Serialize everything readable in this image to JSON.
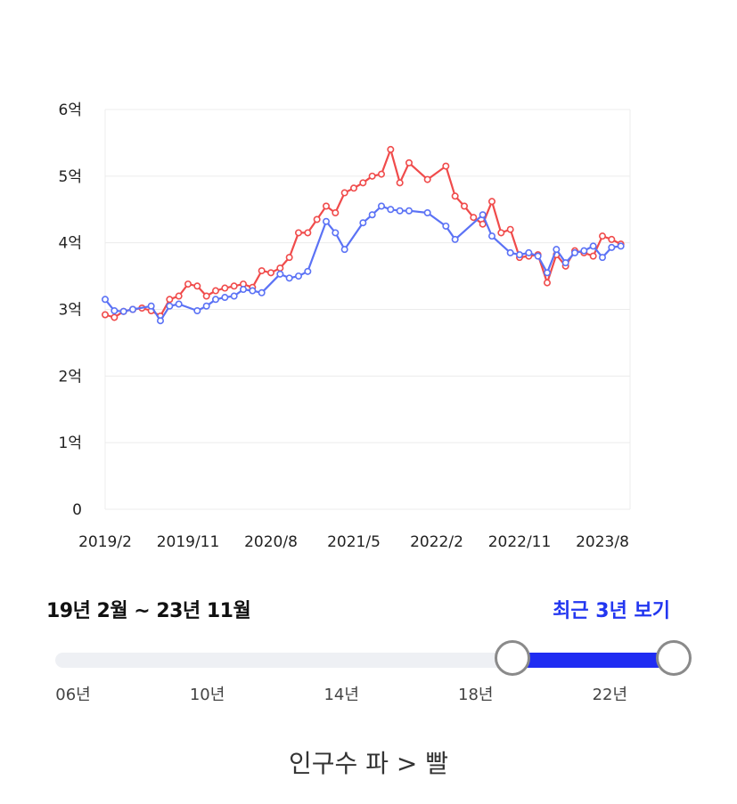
{
  "chart_data": {
    "type": "line",
    "y_ticks": [
      "0",
      "1억",
      "2억",
      "3억",
      "4억",
      "5억",
      "6억"
    ],
    "x_ticks": [
      "2019/2",
      "2019/11",
      "2020/8",
      "2021/5",
      "2022/2",
      "2022/11",
      "2023/8"
    ],
    "x_range": [
      "2019-02",
      "2023-11"
    ],
    "ylim": [
      0,
      6
    ],
    "grid": true,
    "series": [
      {
        "color": "#f04b4b",
        "points": [
          [
            "2019-02",
            2.92
          ],
          [
            "2019-03",
            2.88
          ],
          [
            "2019-04",
            2.97
          ],
          [
            "2019-05",
            3.0
          ],
          [
            "2019-06",
            3.02
          ],
          [
            "2019-07",
            2.98
          ],
          [
            "2019-08",
            2.9
          ],
          [
            "2019-09",
            3.15
          ],
          [
            "2019-10",
            3.2
          ],
          [
            "2019-11",
            3.38
          ],
          [
            "2019-12",
            3.35
          ],
          [
            "2020-01",
            3.2
          ],
          [
            "2020-02",
            3.28
          ],
          [
            "2020-03",
            3.32
          ],
          [
            "2020-04",
            3.35
          ],
          [
            "2020-05",
            3.38
          ],
          [
            "2020-06",
            3.33
          ],
          [
            "2020-07",
            3.58
          ],
          [
            "2020-08",
            3.55
          ],
          [
            "2020-09",
            3.62
          ],
          [
            "2020-10",
            3.78
          ],
          [
            "2020-11",
            4.15
          ],
          [
            "2020-12",
            4.15
          ],
          [
            "2021-01",
            4.35
          ],
          [
            "2021-02",
            4.55
          ],
          [
            "2021-03",
            4.45
          ],
          [
            "2021-04",
            4.75
          ],
          [
            "2021-05",
            4.82
          ],
          [
            "2021-06",
            4.9
          ],
          [
            "2021-07",
            5.0
          ],
          [
            "2021-08",
            5.03
          ],
          [
            "2021-09",
            5.4
          ],
          [
            "2021-10",
            4.9
          ],
          [
            "2021-11",
            5.2
          ],
          [
            "2022-01",
            4.95
          ],
          [
            "2022-03",
            5.15
          ],
          [
            "2022-04",
            4.7
          ],
          [
            "2022-05",
            4.55
          ],
          [
            "2022-06",
            4.38
          ],
          [
            "2022-07",
            4.28
          ],
          [
            "2022-08",
            4.62
          ],
          [
            "2022-09",
            4.15
          ],
          [
            "2022-10",
            4.2
          ],
          [
            "2022-11",
            3.78
          ],
          [
            "2022-12",
            3.8
          ],
          [
            "2023-01",
            3.82
          ],
          [
            "2023-02",
            3.4
          ],
          [
            "2023-03",
            3.82
          ],
          [
            "2023-04",
            3.65
          ],
          [
            "2023-05",
            3.88
          ],
          [
            "2023-06",
            3.85
          ],
          [
            "2023-07",
            3.8
          ],
          [
            "2023-08",
            4.1
          ],
          [
            "2023-09",
            4.05
          ],
          [
            "2023-10",
            3.98
          ]
        ]
      },
      {
        "color": "#5b72f5",
        "points": [
          [
            "2019-02",
            3.15
          ],
          [
            "2019-03",
            2.98
          ],
          [
            "2019-04",
            2.97
          ],
          [
            "2019-05",
            3.0
          ],
          [
            "2019-07",
            3.05
          ],
          [
            "2019-08",
            2.83
          ],
          [
            "2019-09",
            3.05
          ],
          [
            "2019-10",
            3.08
          ],
          [
            "2019-12",
            2.98
          ],
          [
            "2020-01",
            3.05
          ],
          [
            "2020-02",
            3.15
          ],
          [
            "2020-03",
            3.18
          ],
          [
            "2020-04",
            3.2
          ],
          [
            "2020-05",
            3.3
          ],
          [
            "2020-06",
            3.28
          ],
          [
            "2020-07",
            3.25
          ],
          [
            "2020-09",
            3.53
          ],
          [
            "2020-10",
            3.47
          ],
          [
            "2020-11",
            3.5
          ],
          [
            "2020-12",
            3.57
          ],
          [
            "2021-02",
            4.32
          ],
          [
            "2021-03",
            4.15
          ],
          [
            "2021-04",
            3.9
          ],
          [
            "2021-06",
            4.3
          ],
          [
            "2021-07",
            4.42
          ],
          [
            "2021-08",
            4.55
          ],
          [
            "2021-09",
            4.5
          ],
          [
            "2021-10",
            4.48
          ],
          [
            "2021-11",
            4.48
          ],
          [
            "2022-01",
            4.45
          ],
          [
            "2022-03",
            4.25
          ],
          [
            "2022-04",
            4.05
          ],
          [
            "2022-07",
            4.42
          ],
          [
            "2022-08",
            4.1
          ],
          [
            "2022-10",
            3.85
          ],
          [
            "2022-11",
            3.82
          ],
          [
            "2022-12",
            3.85
          ],
          [
            "2023-01",
            3.8
          ],
          [
            "2023-02",
            3.55
          ],
          [
            "2023-03",
            3.9
          ],
          [
            "2023-04",
            3.7
          ],
          [
            "2023-05",
            3.85
          ],
          [
            "2023-06",
            3.88
          ],
          [
            "2023-07",
            3.95
          ],
          [
            "2023-08",
            3.78
          ],
          [
            "2023-09",
            3.93
          ],
          [
            "2023-10",
            3.95
          ]
        ]
      }
    ]
  },
  "range": {
    "text": "19년 2월 ~ 23년 11월",
    "recent_button": "최근 3년 보기"
  },
  "slider": {
    "min_year": 2006,
    "max_year": 2023,
    "selected": [
      2019.1,
      2023.9
    ],
    "labels": [
      {
        "text": "06년",
        "year": 2006
      },
      {
        "text": "10년",
        "year": 2010
      },
      {
        "text": "14년",
        "year": 2014
      },
      {
        "text": "18년",
        "year": 2018
      },
      {
        "text": "22년",
        "year": 2022
      }
    ]
  },
  "breadcrumb": "인구수 파 > 빨"
}
